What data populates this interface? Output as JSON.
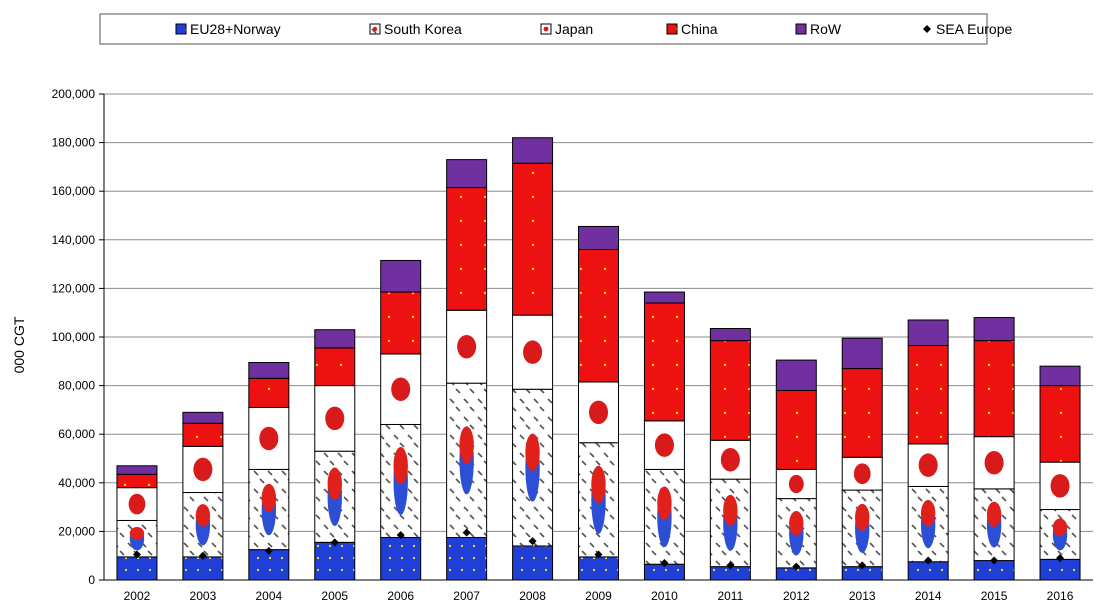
{
  "chart_data": {
    "type": "bar",
    "stacked": true,
    "ylabel": "000 CGT",
    "xlabel": "",
    "title": "",
    "ylim": [
      0,
      200000
    ],
    "yticks": [
      0,
      20000,
      40000,
      60000,
      80000,
      100000,
      120000,
      140000,
      160000,
      180000,
      200000
    ],
    "ytick_labels": [
      "0",
      "20,000",
      "40,000",
      "60,000",
      "80,000",
      "100,000",
      "120,000",
      "140,000",
      "160,000",
      "180,000",
      "200,000"
    ],
    "grid": true,
    "legend_position": "top",
    "categories": [
      "2002",
      "2003",
      "2004",
      "2005",
      "2006",
      "2007",
      "2008",
      "2009",
      "2010",
      "2011",
      "2012",
      "2013",
      "2014",
      "2015",
      "2016"
    ],
    "series": [
      {
        "name": "EU28+Norway",
        "color": "#1f3fd6",
        "values": [
          9500,
          9500,
          12500,
          15500,
          17500,
          17500,
          14000,
          9500,
          6500,
          5500,
          5000,
          5500,
          7500,
          8000,
          8500
        ]
      },
      {
        "name": "South Korea",
        "color": "#ffffff",
        "values": [
          15000,
          26500,
          33000,
          37500,
          46500,
          63500,
          64500,
          47000,
          39000,
          36000,
          28500,
          31500,
          31000,
          29500,
          20500
        ]
      },
      {
        "name": "Japan",
        "color": "#ffffff",
        "values": [
          13500,
          19000,
          25500,
          27000,
          29000,
          30000,
          30500,
          25000,
          20000,
          16000,
          12000,
          13500,
          17500,
          21500,
          19500
        ]
      },
      {
        "name": "China",
        "color": "#ee1111",
        "values": [
          5500,
          9500,
          12000,
          15500,
          25500,
          50500,
          62500,
          54500,
          48500,
          41000,
          32500,
          36500,
          40500,
          39500,
          31500
        ]
      },
      {
        "name": "RoW",
        "color": "#7030a0",
        "values": [
          3500,
          4500,
          6500,
          7500,
          13000,
          11500,
          10500,
          9500,
          4500,
          5000,
          12500,
          12500,
          10500,
          9500,
          8000
        ]
      }
    ],
    "markers": {
      "name": "SEA Europe",
      "color": "#000000",
      "values": [
        10500,
        10000,
        12000,
        15500,
        18500,
        19500,
        16000,
        10500,
        7000,
        6000,
        5500,
        6000,
        8000,
        8000,
        9000
      ]
    }
  }
}
